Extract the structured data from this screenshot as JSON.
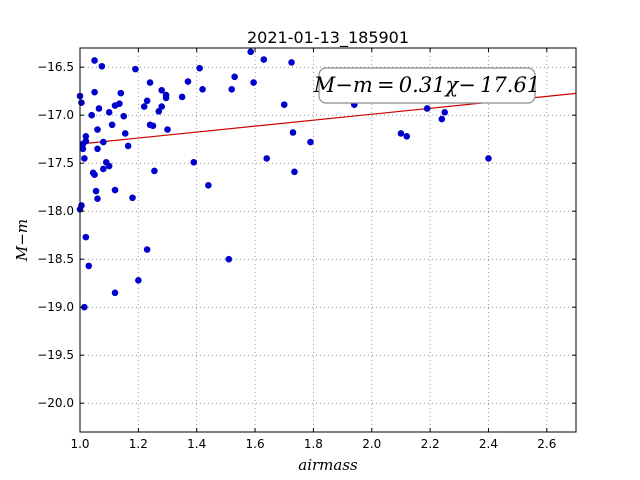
{
  "chart_data": {
    "type": "scatter",
    "title": "2021-01-13_185901",
    "xlabel": "airmass",
    "ylabel": "M−m",
    "xlim": [
      1.0,
      2.7
    ],
    "ylim": [
      -20.3,
      -16.3
    ],
    "y_inverted": true,
    "xticks": [
      1.0,
      1.2,
      1.4,
      1.6,
      1.8,
      2.0,
      2.2,
      2.4,
      2.6
    ],
    "xtick_labels": [
      "1.0",
      "1.2",
      "1.4",
      "1.6",
      "1.8",
      "2.0",
      "2.2",
      "2.4",
      "2.6"
    ],
    "yticks": [
      -16.5,
      -17.0,
      -17.5,
      -18.0,
      -18.5,
      -19.0,
      -19.5,
      -20.0
    ],
    "ytick_labels": [
      "−16.5",
      "−17.0",
      "−17.5",
      "−18.0",
      "−18.5",
      "−19.0",
      "−19.5",
      "−20.0"
    ],
    "grid": true,
    "colors": {
      "points": "#0000cc",
      "fit_line": "#cc0000",
      "axes": "#000000",
      "grid": "#888888"
    },
    "annotation": {
      "text": "M−m = 0.31χ− 17.61",
      "location": "top-right"
    },
    "fit": {
      "slope": 0.31,
      "intercept": -17.61
    },
    "points": [
      {
        "x": 1.0,
        "y": -16.8
      },
      {
        "x": 1.005,
        "y": -16.87
      },
      {
        "x": 1.01,
        "y": -17.3
      },
      {
        "x": 1.01,
        "y": -17.35
      },
      {
        "x": 1.015,
        "y": -17.45
      },
      {
        "x": 1.02,
        "y": -17.22
      },
      {
        "x": 1.02,
        "y": -17.27
      },
      {
        "x": 1.0,
        "y": -17.98
      },
      {
        "x": 1.005,
        "y": -17.94
      },
      {
        "x": 1.02,
        "y": -18.27
      },
      {
        "x": 1.03,
        "y": -18.57
      },
      {
        "x": 1.015,
        "y": -19.0
      },
      {
        "x": 1.04,
        "y": -17.0
      },
      {
        "x": 1.045,
        "y": -17.6
      },
      {
        "x": 1.05,
        "y": -16.43
      },
      {
        "x": 1.05,
        "y": -16.76
      },
      {
        "x": 1.05,
        "y": -17.62
      },
      {
        "x": 1.055,
        "y": -17.79
      },
      {
        "x": 1.06,
        "y": -17.15
      },
      {
        "x": 1.06,
        "y": -17.35
      },
      {
        "x": 1.065,
        "y": -16.93
      },
      {
        "x": 1.06,
        "y": -17.87
      },
      {
        "x": 1.075,
        "y": -16.49
      },
      {
        "x": 1.08,
        "y": -17.28
      },
      {
        "x": 1.08,
        "y": -17.56
      },
      {
        "x": 1.09,
        "y": -17.49
      },
      {
        "x": 1.1,
        "y": -16.97
      },
      {
        "x": 1.1,
        "y": -17.53
      },
      {
        "x": 1.11,
        "y": -17.1
      },
      {
        "x": 1.12,
        "y": -16.9
      },
      {
        "x": 1.12,
        "y": -17.78
      },
      {
        "x": 1.12,
        "y": -18.85
      },
      {
        "x": 1.135,
        "y": -16.88
      },
      {
        "x": 1.14,
        "y": -16.77
      },
      {
        "x": 1.15,
        "y": -17.01
      },
      {
        "x": 1.155,
        "y": -17.19
      },
      {
        "x": 1.165,
        "y": -17.32
      },
      {
        "x": 1.18,
        "y": -17.86
      },
      {
        "x": 1.19,
        "y": -16.52
      },
      {
        "x": 1.2,
        "y": -18.72
      },
      {
        "x": 1.22,
        "y": -16.91
      },
      {
        "x": 1.23,
        "y": -16.85
      },
      {
        "x": 1.23,
        "y": -18.4
      },
      {
        "x": 1.24,
        "y": -16.66
      },
      {
        "x": 1.24,
        "y": -17.1
      },
      {
        "x": 1.25,
        "y": -17.11
      },
      {
        "x": 1.255,
        "y": -17.58
      },
      {
        "x": 1.27,
        "y": -16.96
      },
      {
        "x": 1.28,
        "y": -16.74
      },
      {
        "x": 1.28,
        "y": -16.91
      },
      {
        "x": 1.295,
        "y": -16.79
      },
      {
        "x": 1.295,
        "y": -16.82
      },
      {
        "x": 1.3,
        "y": -17.15
      },
      {
        "x": 1.35,
        "y": -16.81
      },
      {
        "x": 1.37,
        "y": -16.65
      },
      {
        "x": 1.39,
        "y": -17.49
      },
      {
        "x": 1.41,
        "y": -16.51
      },
      {
        "x": 1.42,
        "y": -16.73
      },
      {
        "x": 1.44,
        "y": -17.73
      },
      {
        "x": 1.51,
        "y": -18.5
      },
      {
        "x": 1.52,
        "y": -16.73
      },
      {
        "x": 1.53,
        "y": -16.6
      },
      {
        "x": 1.585,
        "y": -16.34
      },
      {
        "x": 1.595,
        "y": -16.66
      },
      {
        "x": 1.63,
        "y": -16.42
      },
      {
        "x": 1.64,
        "y": -17.45
      },
      {
        "x": 1.7,
        "y": -16.89
      },
      {
        "x": 1.725,
        "y": -16.45
      },
      {
        "x": 1.73,
        "y": -17.18
      },
      {
        "x": 1.735,
        "y": -17.59
      },
      {
        "x": 1.79,
        "y": -17.28
      },
      {
        "x": 1.94,
        "y": -16.89
      },
      {
        "x": 2.1,
        "y": -17.19
      },
      {
        "x": 2.12,
        "y": -17.22
      },
      {
        "x": 2.19,
        "y": -16.93
      },
      {
        "x": 2.24,
        "y": -17.04
      },
      {
        "x": 2.25,
        "y": -16.97
      },
      {
        "x": 2.4,
        "y": -17.45
      }
    ]
  }
}
